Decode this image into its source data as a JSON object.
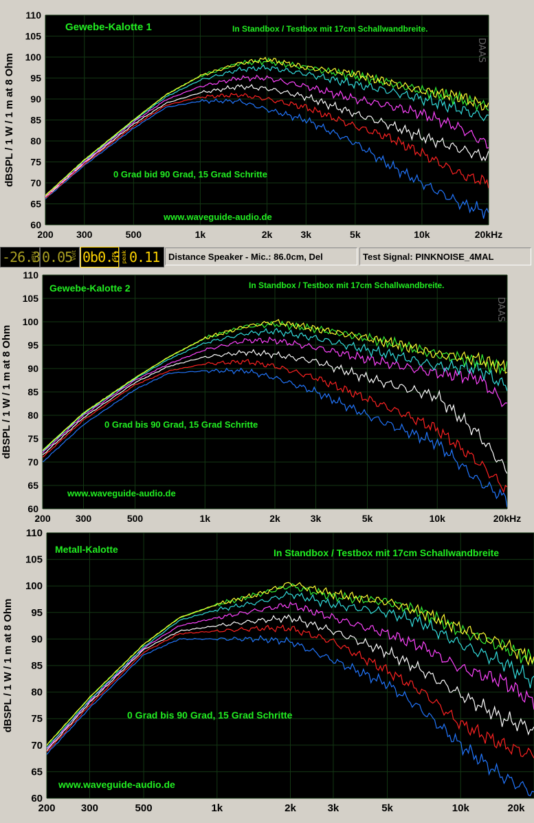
{
  "status": {
    "lcd1_value": "-26.3",
    "lcd1_small": "dBV",
    "lcd2_value": "0.05",
    "lcd2_small": "Volt",
    "lcd3_value": "0b0.3",
    "lcd3_small": "SPL",
    "lcd4_value": "0.11",
    "lcd4_small": "peak",
    "distance_text": "Distance Speaker - Mic.: 86.0cm, Del",
    "signal_text": "Test Signal: PINKNOISE_4MAL"
  },
  "colors": {
    "background": "#000000",
    "grid": "#1a4a1a",
    "label_green": "#22ee22",
    "series": [
      "#ffff33",
      "#33ee33",
      "#33dddd",
      "#ff44ff",
      "#ffffff",
      "#ff2222",
      "#2277ff"
    ]
  },
  "chart_data": [
    {
      "type": "line",
      "title": "Gewebe-Kalotte 1",
      "subtitle": "In Standbox / Testbox mit 17cm Schallwandbreite.",
      "annotation": "0 Grad bid 90 Grad, 15 Grad Schritte",
      "footer": "www.waveguide-audio.de",
      "watermark": "DAAS",
      "ylabel": "dBSPL / 1 W / 1 m at 8 Ohm",
      "xlabel": "",
      "xscale": "log",
      "xlim": [
        200,
        20000
      ],
      "ylim": [
        60,
        110
      ],
      "yticks": [
        60,
        65,
        70,
        75,
        80,
        85,
        90,
        95,
        100,
        105,
        110
      ],
      "xticks": [
        {
          "v": 200,
          "label": "200"
        },
        {
          "v": 300,
          "label": "300"
        },
        {
          "v": 500,
          "label": "500"
        },
        {
          "v": 1000,
          "label": "1k"
        },
        {
          "v": 2000,
          "label": "2k"
        },
        {
          "v": 3000,
          "label": "3k"
        },
        {
          "v": 5000,
          "label": "5k"
        },
        {
          "v": 10000,
          "label": "10k"
        },
        {
          "v": 20000,
          "label": "20kHz"
        }
      ],
      "grid": true,
      "x": [
        200,
        300,
        500,
        700,
        1000,
        1500,
        2000,
        3000,
        5000,
        7000,
        10000,
        15000,
        20000
      ],
      "series": [
        {
          "values": [
            67,
            75.5,
            85,
            91,
            95.5,
            98.5,
            99.5,
            97.5,
            96,
            94,
            92,
            90.5,
            88
          ]
        },
        {
          "values": [
            67,
            75.5,
            85,
            91,
            95.5,
            98.5,
            99,
            97.5,
            95.5,
            94,
            92,
            90,
            88
          ]
        },
        {
          "values": [
            67,
            75.3,
            84.8,
            90.5,
            94.5,
            97,
            97.5,
            96,
            93.5,
            92,
            90,
            87.5,
            85.5
          ]
        },
        {
          "values": [
            66.8,
            75,
            84.5,
            89.8,
            93,
            95,
            95,
            93,
            90,
            88.5,
            86.5,
            83,
            79
          ]
        },
        {
          "values": [
            66.6,
            74.8,
            84,
            89,
            91.5,
            93,
            92.5,
            90.5,
            86.5,
            84,
            81,
            78,
            76
          ]
        },
        {
          "values": [
            66.4,
            74.5,
            83.5,
            88.5,
            90.5,
            91,
            90,
            88,
            83.5,
            81,
            77,
            72,
            70
          ]
        },
        {
          "values": [
            66.2,
            74.2,
            83,
            88,
            89.5,
            89.5,
            87.5,
            85,
            79.5,
            74.5,
            70,
            65,
            63
          ]
        }
      ]
    },
    {
      "type": "line",
      "title": "Gewebe-Kalotte 2",
      "subtitle": "In Standbox / Testbox mit 17cm Schallwandbreite.",
      "annotation": "0 Grad bis 90 Grad, 15 Grad Schritte",
      "footer": "www.waveguide-audio.de",
      "watermark": "DAAS",
      "ylabel": "dBSPL / 1 W / 1 m at 8 Ohm",
      "xlabel": "",
      "xscale": "log",
      "xlim": [
        200,
        20000
      ],
      "ylim": [
        60,
        110
      ],
      "yticks": [
        60,
        65,
        70,
        75,
        80,
        85,
        90,
        95,
        100,
        105,
        110
      ],
      "xticks": [
        {
          "v": 200,
          "label": "200"
        },
        {
          "v": 300,
          "label": "300"
        },
        {
          "v": 500,
          "label": "500"
        },
        {
          "v": 1000,
          "label": "1k"
        },
        {
          "v": 2000,
          "label": "2k"
        },
        {
          "v": 3000,
          "label": "3k"
        },
        {
          "v": 5000,
          "label": "5k"
        },
        {
          "v": 10000,
          "label": "10k"
        },
        {
          "v": 20000,
          "label": "20kHz"
        }
      ],
      "grid": true,
      "x": [
        200,
        300,
        500,
        700,
        1000,
        1500,
        2000,
        3000,
        5000,
        7000,
        10000,
        15000,
        20000
      ],
      "series": [
        {
          "values": [
            72.5,
            80.5,
            88,
            92.5,
            96.5,
            99,
            100,
            98.5,
            96.5,
            95,
            93,
            92,
            90
          ]
        },
        {
          "values": [
            72.5,
            80.5,
            88,
            92.5,
            96.5,
            99,
            99.5,
            98.5,
            96.5,
            95,
            93,
            91.5,
            90
          ]
        },
        {
          "values": [
            72.3,
            80.3,
            87.8,
            92,
            95.5,
            97.5,
            98,
            96.5,
            94,
            92.5,
            90.5,
            90,
            86
          ]
        },
        {
          "values": [
            72,
            80,
            87.5,
            91,
            94,
            96,
            96,
            94.5,
            92,
            90.5,
            89,
            88,
            82
          ]
        },
        {
          "values": [
            71.5,
            79.5,
            87,
            90.5,
            92.5,
            93.5,
            93,
            91.5,
            88,
            86,
            84,
            76,
            68
          ]
        },
        {
          "values": [
            71,
            79,
            86.5,
            89.5,
            91,
            91.5,
            90.5,
            88,
            83.5,
            80.5,
            77,
            70,
            64
          ]
        },
        {
          "values": [
            70,
            78,
            85.5,
            89,
            89.5,
            89.5,
            88,
            85,
            80,
            77,
            74,
            66,
            62
          ]
        }
      ]
    },
    {
      "type": "line",
      "title": "Metall-Kalotte",
      "subtitle": "In Standbox / Testbox mit 17cm Schallwandbreite",
      "annotation": "0 Grad bis 90 Grad, 15 Grad Schritte",
      "footer": "www.waveguide-audio.de",
      "ylabel": "dBSPL / 1 W / 1 m at 8 Ohm",
      "xlabel": "",
      "xscale": "log",
      "xlim": [
        200,
        20000
      ],
      "ylim": [
        60,
        110
      ],
      "yticks": [
        60,
        65,
        70,
        75,
        80,
        85,
        90,
        95,
        100,
        105,
        110
      ],
      "xticks": [
        {
          "v": 200,
          "label": "200"
        },
        {
          "v": 300,
          "label": "300"
        },
        {
          "v": 500,
          "label": "500"
        },
        {
          "v": 1000,
          "label": "1k"
        },
        {
          "v": 2000,
          "label": "2k"
        },
        {
          "v": 3000,
          "label": "3k"
        },
        {
          "v": 5000,
          "label": "5k"
        },
        {
          "v": 10000,
          "label": "10k"
        },
        {
          "v": 20000,
          "label": "20k"
        }
      ],
      "grid": true,
      "x": [
        200,
        300,
        500,
        700,
        1000,
        1500,
        2000,
        3000,
        5000,
        7000,
        10000,
        15000,
        20000
      ],
      "series": [
        {
          "values": [
            70,
            79,
            89,
            94,
            96.5,
            98.5,
            100.5,
            98.5,
            97,
            95,
            92,
            89,
            86
          ]
        },
        {
          "values": [
            70,
            79,
            89,
            94,
            96.5,
            98.5,
            100,
            98,
            97,
            95,
            91.5,
            88.5,
            86
          ]
        },
        {
          "values": [
            69.5,
            78.5,
            88.5,
            93.5,
            95.5,
            97,
            98.5,
            96.5,
            95,
            93,
            89,
            85.5,
            82
          ]
        },
        {
          "values": [
            69.3,
            78.3,
            88.3,
            92.5,
            94,
            95.5,
            96.5,
            94,
            91,
            88.5,
            84.5,
            82,
            78
          ]
        },
        {
          "values": [
            69,
            78,
            88,
            91.5,
            92.5,
            93.5,
            94,
            91.5,
            87.5,
            84,
            79.5,
            75,
            73
          ]
        },
        {
          "values": [
            68.7,
            77.5,
            87.5,
            91,
            91.5,
            92,
            92,
            89.5,
            84,
            80,
            74,
            70,
            68
          ]
        },
        {
          "values": [
            68.3,
            77,
            87,
            90,
            90,
            90,
            89.5,
            86,
            81.5,
            76.5,
            70,
            64,
            61
          ]
        }
      ]
    }
  ]
}
